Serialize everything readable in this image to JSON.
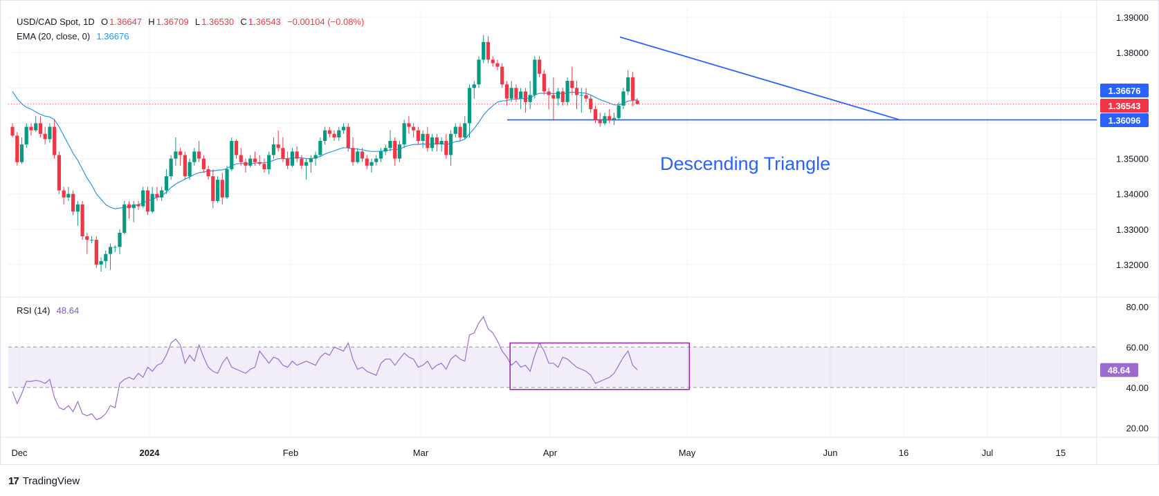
{
  "header": {
    "symbol": "USD/CAD Spot, 1D",
    "open_label": "O",
    "open": "1.36647",
    "high_label": "H",
    "high": "1.36709",
    "low_label": "L",
    "low": "1.36530",
    "close_label": "C",
    "close": "1.36543",
    "change": "−0.00104 (−0.08%)",
    "ema_label": "EMA (20, close, 0)",
    "ema_value": "1.36676",
    "rsi_label": "RSI (14)",
    "rsi_value": "48.64"
  },
  "footer": {
    "brand": "TradingView",
    "logo": "17"
  },
  "colors": {
    "up": "#089981",
    "down": "#f23645",
    "ema": "#2196f3",
    "trend": "#2962ff",
    "rsi": "#9c6bd0",
    "rsi_box": "#9c27b0",
    "grid": "#f0f3fa"
  },
  "chart_data": [
    {
      "type": "candlestick",
      "annotation": "Descending Triangle",
      "y_ticks": [
        "1.39000",
        "1.38000",
        "1.37000",
        "1.36000",
        "1.35000",
        "1.34000",
        "1.33000",
        "1.32000"
      ],
      "ylim": [
        1.3125,
        1.392
      ],
      "x_ticks": [
        "Dec",
        "2024",
        "Feb",
        "Mar",
        "Apr",
        "May",
        "Jun",
        "16",
        "Jul",
        "15"
      ],
      "price_labels": [
        {
          "value": "1.36676",
          "color": "#2962ff"
        },
        {
          "value": "1.36543",
          "color": "#f23645"
        },
        {
          "value": "1.36096",
          "color": "#2962ff"
        }
      ],
      "last_close": 1.36543,
      "support": 1.36096,
      "resistance_line": [
        {
          "x": "2024-04-16",
          "y": 1.3844
        },
        {
          "x": "2024-06-14",
          "y": 1.361
        }
      ],
      "candles_ohlc": [
        [
          1.359,
          1.36,
          1.356,
          1.3565
        ],
        [
          1.3565,
          1.3575,
          1.348,
          1.349
        ],
        [
          1.349,
          1.356,
          1.3485,
          1.354
        ],
        [
          1.354,
          1.36,
          1.353,
          1.359
        ],
        [
          1.359,
          1.36,
          1.3565,
          1.358
        ],
        [
          1.358,
          1.362,
          1.3575,
          1.36
        ],
        [
          1.36,
          1.362,
          1.356,
          1.357
        ],
        [
          1.357,
          1.359,
          1.354,
          1.3555
        ],
        [
          1.3555,
          1.36,
          1.3545,
          1.359
        ],
        [
          1.359,
          1.361,
          1.35,
          1.351
        ],
        [
          1.351,
          1.352,
          1.34,
          1.341
        ],
        [
          1.341,
          1.342,
          1.337,
          1.339
        ],
        [
          1.339,
          1.342,
          1.338,
          1.34
        ],
        [
          1.34,
          1.341,
          1.334,
          1.335
        ],
        [
          1.335,
          1.338,
          1.331,
          1.337
        ],
        [
          1.337,
          1.338,
          1.327,
          1.328
        ],
        [
          1.328,
          1.329,
          1.323,
          1.327
        ],
        [
          1.327,
          1.328,
          1.326,
          1.327
        ],
        [
          1.327,
          1.328,
          1.319,
          1.32
        ],
        [
          1.32,
          1.322,
          1.318,
          1.321
        ],
        [
          1.321,
          1.324,
          1.319,
          1.323
        ],
        [
          1.323,
          1.326,
          1.3185,
          1.325
        ],
        [
          1.325,
          1.3255,
          1.3235,
          1.325
        ],
        [
          1.325,
          1.33,
          1.323,
          1.329
        ],
        [
          1.329,
          1.338,
          1.3285,
          1.337
        ],
        [
          1.337,
          1.338,
          1.333,
          1.336
        ],
        [
          1.336,
          1.338,
          1.332,
          1.337
        ],
        [
          1.337,
          1.338,
          1.3355,
          1.3365
        ],
        [
          1.3365,
          1.342,
          1.336,
          1.341
        ],
        [
          1.341,
          1.342,
          1.334,
          1.335
        ],
        [
          1.335,
          1.342,
          1.3345,
          1.34
        ],
        [
          1.34,
          1.342,
          1.338,
          1.339
        ],
        [
          1.339,
          1.342,
          1.338,
          1.341
        ],
        [
          1.341,
          1.347,
          1.34,
          1.345
        ],
        [
          1.345,
          1.351,
          1.344,
          1.35
        ],
        [
          1.35,
          1.356,
          1.348,
          1.352
        ],
        [
          1.352,
          1.353,
          1.348,
          1.351
        ],
        [
          1.351,
          1.352,
          1.344,
          1.345
        ],
        [
          1.345,
          1.35,
          1.344,
          1.349
        ],
        [
          1.349,
          1.353,
          1.348,
          1.352
        ],
        [
          1.352,
          1.355,
          1.349,
          1.35
        ],
        [
          1.35,
          1.351,
          1.346,
          1.347
        ],
        [
          1.347,
          1.348,
          1.344,
          1.345
        ],
        [
          1.345,
          1.347,
          1.336,
          1.338
        ],
        [
          1.338,
          1.345,
          1.3375,
          1.344
        ],
        [
          1.344,
          1.346,
          1.337,
          1.339
        ],
        [
          1.339,
          1.348,
          1.3385,
          1.347
        ],
        [
          1.347,
          1.356,
          1.3465,
          1.355
        ],
        [
          1.355,
          1.3555,
          1.35,
          1.351
        ],
        [
          1.351,
          1.353,
          1.348,
          1.349
        ],
        [
          1.349,
          1.35,
          1.346,
          1.348
        ],
        [
          1.348,
          1.351,
          1.3475,
          1.35
        ],
        [
          1.35,
          1.352,
          1.348,
          1.349
        ],
        [
          1.349,
          1.351,
          1.348,
          1.3485
        ],
        [
          1.3485,
          1.35,
          1.346,
          1.347
        ],
        [
          1.347,
          1.352,
          1.3455,
          1.351
        ],
        [
          1.351,
          1.356,
          1.35,
          1.354
        ],
        [
          1.354,
          1.358,
          1.352,
          1.353
        ],
        [
          1.353,
          1.356,
          1.349,
          1.35
        ],
        [
          1.35,
          1.352,
          1.347,
          1.348
        ],
        [
          1.348,
          1.353,
          1.3475,
          1.352
        ],
        [
          1.352,
          1.3535,
          1.349,
          1.35
        ],
        [
          1.35,
          1.351,
          1.347,
          1.348
        ],
        [
          1.348,
          1.35,
          1.344,
          1.349
        ],
        [
          1.349,
          1.351,
          1.346,
          1.35
        ],
        [
          1.35,
          1.352,
          1.348,
          1.351
        ],
        [
          1.351,
          1.356,
          1.3505,
          1.355
        ],
        [
          1.355,
          1.359,
          1.354,
          1.358
        ],
        [
          1.358,
          1.359,
          1.356,
          1.357
        ],
        [
          1.357,
          1.358,
          1.355,
          1.356
        ],
        [
          1.356,
          1.359,
          1.355,
          1.358
        ],
        [
          1.358,
          1.36,
          1.357,
          1.359
        ],
        [
          1.359,
          1.36,
          1.352,
          1.353
        ],
        [
          1.353,
          1.356,
          1.348,
          1.349
        ],
        [
          1.349,
          1.353,
          1.3485,
          1.352
        ],
        [
          1.352,
          1.353,
          1.349,
          1.35
        ],
        [
          1.35,
          1.351,
          1.347,
          1.348
        ],
        [
          1.348,
          1.35,
          1.346,
          1.349
        ],
        [
          1.349,
          1.351,
          1.348,
          1.35
        ],
        [
          1.35,
          1.353,
          1.349,
          1.352
        ],
        [
          1.352,
          1.354,
          1.351,
          1.353
        ],
        [
          1.353,
          1.358,
          1.352,
          1.355
        ],
        [
          1.355,
          1.356,
          1.348,
          1.35
        ],
        [
          1.35,
          1.355,
          1.349,
          1.354
        ],
        [
          1.354,
          1.361,
          1.353,
          1.36
        ],
        [
          1.36,
          1.362,
          1.357,
          1.359
        ],
        [
          1.359,
          1.36,
          1.356,
          1.358
        ],
        [
          1.358,
          1.359,
          1.354,
          1.355
        ],
        [
          1.355,
          1.358,
          1.353,
          1.357
        ],
        [
          1.357,
          1.359,
          1.352,
          1.353
        ],
        [
          1.353,
          1.357,
          1.352,
          1.356
        ],
        [
          1.356,
          1.357,
          1.352,
          1.354
        ],
        [
          1.354,
          1.356,
          1.352,
          1.355
        ],
        [
          1.355,
          1.357,
          1.35,
          1.351
        ],
        [
          1.351,
          1.358,
          1.348,
          1.357
        ],
        [
          1.357,
          1.36,
          1.356,
          1.359
        ],
        [
          1.359,
          1.36,
          1.355,
          1.356
        ],
        [
          1.356,
          1.362,
          1.3555,
          1.36
        ],
        [
          1.36,
          1.371,
          1.356,
          1.37
        ],
        [
          1.37,
          1.372,
          1.367,
          1.371
        ],
        [
          1.371,
          1.379,
          1.37,
          1.378
        ],
        [
          1.378,
          1.385,
          1.377,
          1.383
        ],
        [
          1.383,
          1.3846,
          1.377,
          1.378
        ],
        [
          1.378,
          1.379,
          1.376,
          1.377
        ],
        [
          1.377,
          1.378,
          1.375,
          1.376
        ],
        [
          1.376,
          1.377,
          1.37,
          1.371
        ],
        [
          1.371,
          1.372,
          1.365,
          1.367
        ],
        [
          1.367,
          1.372,
          1.366,
          1.37
        ],
        [
          1.37,
          1.371,
          1.366,
          1.367
        ],
        [
          1.367,
          1.37,
          1.364,
          1.369
        ],
        [
          1.369,
          1.37,
          1.363,
          1.366
        ],
        [
          1.366,
          1.372,
          1.364,
          1.368
        ],
        [
          1.368,
          1.379,
          1.367,
          1.378
        ],
        [
          1.378,
          1.379,
          1.373,
          1.374
        ],
        [
          1.374,
          1.375,
          1.368,
          1.369
        ],
        [
          1.369,
          1.37,
          1.364,
          1.368
        ],
        [
          1.368,
          1.373,
          1.361,
          1.367
        ],
        [
          1.367,
          1.37,
          1.365,
          1.369
        ],
        [
          1.369,
          1.37,
          1.365,
          1.366
        ],
        [
          1.366,
          1.373,
          1.365,
          1.372
        ],
        [
          1.372,
          1.376,
          1.368,
          1.37
        ],
        [
          1.37,
          1.372,
          1.364,
          1.368
        ],
        [
          1.368,
          1.37,
          1.363,
          1.368
        ],
        [
          1.368,
          1.37,
          1.366,
          1.367
        ],
        [
          1.367,
          1.368,
          1.363,
          1.364
        ],
        [
          1.364,
          1.365,
          1.36,
          1.361
        ],
        [
          1.361,
          1.363,
          1.359,
          1.36
        ],
        [
          1.36,
          1.363,
          1.3595,
          1.362
        ],
        [
          1.362,
          1.364,
          1.36,
          1.361
        ],
        [
          1.361,
          1.363,
          1.3595,
          1.3615
        ],
        [
          1.3615,
          1.366,
          1.361,
          1.365
        ],
        [
          1.365,
          1.37,
          1.364,
          1.369
        ],
        [
          1.369,
          1.375,
          1.368,
          1.373
        ],
        [
          1.373,
          1.3745,
          1.365,
          1.3665
        ],
        [
          1.36647,
          1.36709,
          1.3653,
          1.36543
        ]
      ],
      "ema20": [
        1.369,
        1.367,
        1.3655,
        1.3645,
        1.364,
        1.3632,
        1.3625,
        1.362,
        1.3618,
        1.361,
        1.359,
        1.3565,
        1.354,
        1.3515,
        1.3495,
        1.347,
        1.3445,
        1.3425,
        1.34,
        1.3385,
        1.337,
        1.3362,
        1.3358,
        1.336,
        1.3362,
        1.3364,
        1.3367,
        1.337,
        1.3375,
        1.338,
        1.3385,
        1.339,
        1.3395,
        1.3405,
        1.3418,
        1.3428,
        1.3435,
        1.3442,
        1.3448,
        1.3455,
        1.346,
        1.3462,
        1.3465,
        1.3465,
        1.3467,
        1.3468,
        1.3472,
        1.348,
        1.3485,
        1.3486,
        1.3485,
        1.3486,
        1.3487,
        1.3488,
        1.3488,
        1.349,
        1.3495,
        1.35,
        1.35,
        1.35,
        1.3502,
        1.3503,
        1.3502,
        1.35,
        1.35,
        1.3502,
        1.3506,
        1.3513,
        1.3518,
        1.3522,
        1.3527,
        1.3531,
        1.353,
        1.3528,
        1.3527,
        1.3525,
        1.3522,
        1.352,
        1.352,
        1.3521,
        1.3522,
        1.3525,
        1.3525,
        1.3527,
        1.3533,
        1.3537,
        1.354,
        1.354,
        1.3542,
        1.354,
        1.3542,
        1.3542,
        1.3543,
        1.354,
        1.3543,
        1.3548,
        1.355,
        1.3555,
        1.357,
        1.3585,
        1.3603,
        1.3623,
        1.3638,
        1.365,
        1.366,
        1.3663,
        1.3664,
        1.3668,
        1.3668,
        1.367,
        1.367,
        1.3671,
        1.368,
        1.3685,
        1.3685,
        1.3685,
        1.3684,
        1.3685,
        1.3683,
        1.3686,
        1.3688,
        1.3687,
        1.3686,
        1.3685,
        1.368,
        1.3673,
        1.3667,
        1.3662,
        1.3657,
        1.3652,
        1.3652,
        1.3656,
        1.3663,
        1.3664,
        1.36676
      ],
      "rsi_panel": {
        "y_ticks": [
          "80.00",
          "60.00",
          "40.00",
          "20.00"
        ],
        "ylim": [
          15,
          82
        ],
        "upper_band": 60,
        "lower_band": 40,
        "last_value": "48.64",
        "values": [
          38,
          32,
          37,
          43,
          43,
          43.5,
          43,
          42,
          44,
          35,
          30,
          29,
          31,
          28,
          33,
          27,
          26,
          27,
          24,
          25,
          27,
          31,
          30,
          42,
          44,
          45,
          44,
          47,
          45,
          50,
          48,
          51,
          52,
          56,
          62,
          64,
          61,
          52,
          56,
          53,
          61,
          55,
          50,
          48,
          47,
          52,
          55,
          50,
          49,
          48,
          47,
          49,
          50,
          58,
          55,
          52,
          55,
          54,
          51,
          50,
          53,
          51,
          52,
          53,
          52,
          51,
          55,
          57,
          56,
          60,
          59,
          58,
          62,
          54,
          49,
          50,
          48,
          47,
          46,
          52,
          54,
          54,
          51,
          54,
          57,
          55,
          54,
          50,
          51,
          53,
          49,
          51,
          52,
          49,
          54,
          56,
          54,
          53,
          66,
          67,
          72,
          75,
          69,
          67,
          63,
          58,
          55,
          51,
          53,
          50,
          51,
          48,
          56,
          62,
          58,
          52,
          52,
          50,
          55,
          54,
          52,
          50,
          49,
          48,
          46,
          42,
          43,
          44,
          45,
          47,
          51,
          55,
          58,
          51,
          48.64
        ],
        "box": {
          "from_index": 107,
          "to_index": 145,
          "ylim": [
            39,
            62
          ]
        }
      }
    }
  ]
}
